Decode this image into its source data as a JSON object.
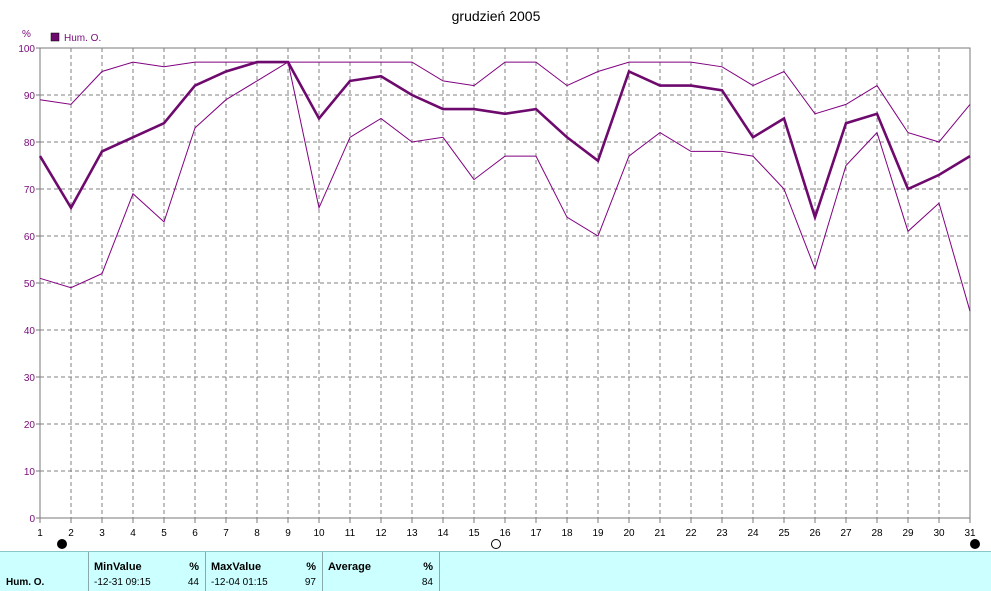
{
  "chart_data": {
    "type": "line",
    "title": "grudzień 2005",
    "ylabel": "%",
    "ylim": [
      0,
      100
    ],
    "yticks": [
      0,
      10,
      20,
      30,
      40,
      50,
      60,
      70,
      80,
      90,
      100
    ],
    "x": [
      1,
      2,
      3,
      4,
      5,
      6,
      7,
      8,
      9,
      10,
      11,
      12,
      13,
      14,
      15,
      16,
      17,
      18,
      19,
      20,
      21,
      22,
      23,
      24,
      25,
      26,
      27,
      28,
      29,
      30,
      31
    ],
    "legend": {
      "label": "Hum. O.",
      "placement": "top-left"
    },
    "grid": true,
    "series": [
      {
        "role": "max",
        "color": "#800080",
        "values": [
          89,
          88,
          95,
          97,
          96,
          97,
          97,
          97,
          97,
          97,
          97,
          97,
          97,
          93,
          92,
          97,
          97,
          92,
          95,
          97,
          97,
          97,
          96,
          92,
          95,
          86,
          88,
          92,
          82,
          80,
          88
        ]
      },
      {
        "name": "Hum. O.",
        "role": "average",
        "color": "#6e0a6e",
        "values": [
          77,
          66,
          78,
          81,
          84,
          92,
          95,
          97,
          97,
          85,
          93,
          94,
          90,
          87,
          87,
          86,
          87,
          81,
          76,
          95,
          92,
          92,
          91,
          81,
          85,
          64,
          84,
          86,
          70,
          73,
          77
        ]
      },
      {
        "role": "min",
        "color": "#800080",
        "values": [
          51,
          49,
          52,
          69,
          63,
          83,
          89,
          93,
          97,
          66,
          81,
          85,
          80,
          81,
          72,
          77,
          77,
          64,
          60,
          77,
          82,
          78,
          78,
          77,
          70,
          53,
          75,
          82,
          61,
          67,
          44
        ]
      }
    ],
    "markers": [
      {
        "x": 2,
        "style": "filled"
      },
      {
        "x": 16,
        "style": "open"
      },
      {
        "x": 31,
        "style": "filled"
      }
    ]
  },
  "stats": {
    "row_label": "Hum. O.",
    "min_header": "MinValue",
    "min_unit": "%",
    "min_time": "-12-31  09:15",
    "min_value": "44",
    "max_header": "MaxValue",
    "max_unit": "%",
    "max_time": "-12-04  01:15",
    "max_value": "97",
    "avg_header": "Average",
    "avg_unit": "%",
    "avg_value": "84"
  }
}
